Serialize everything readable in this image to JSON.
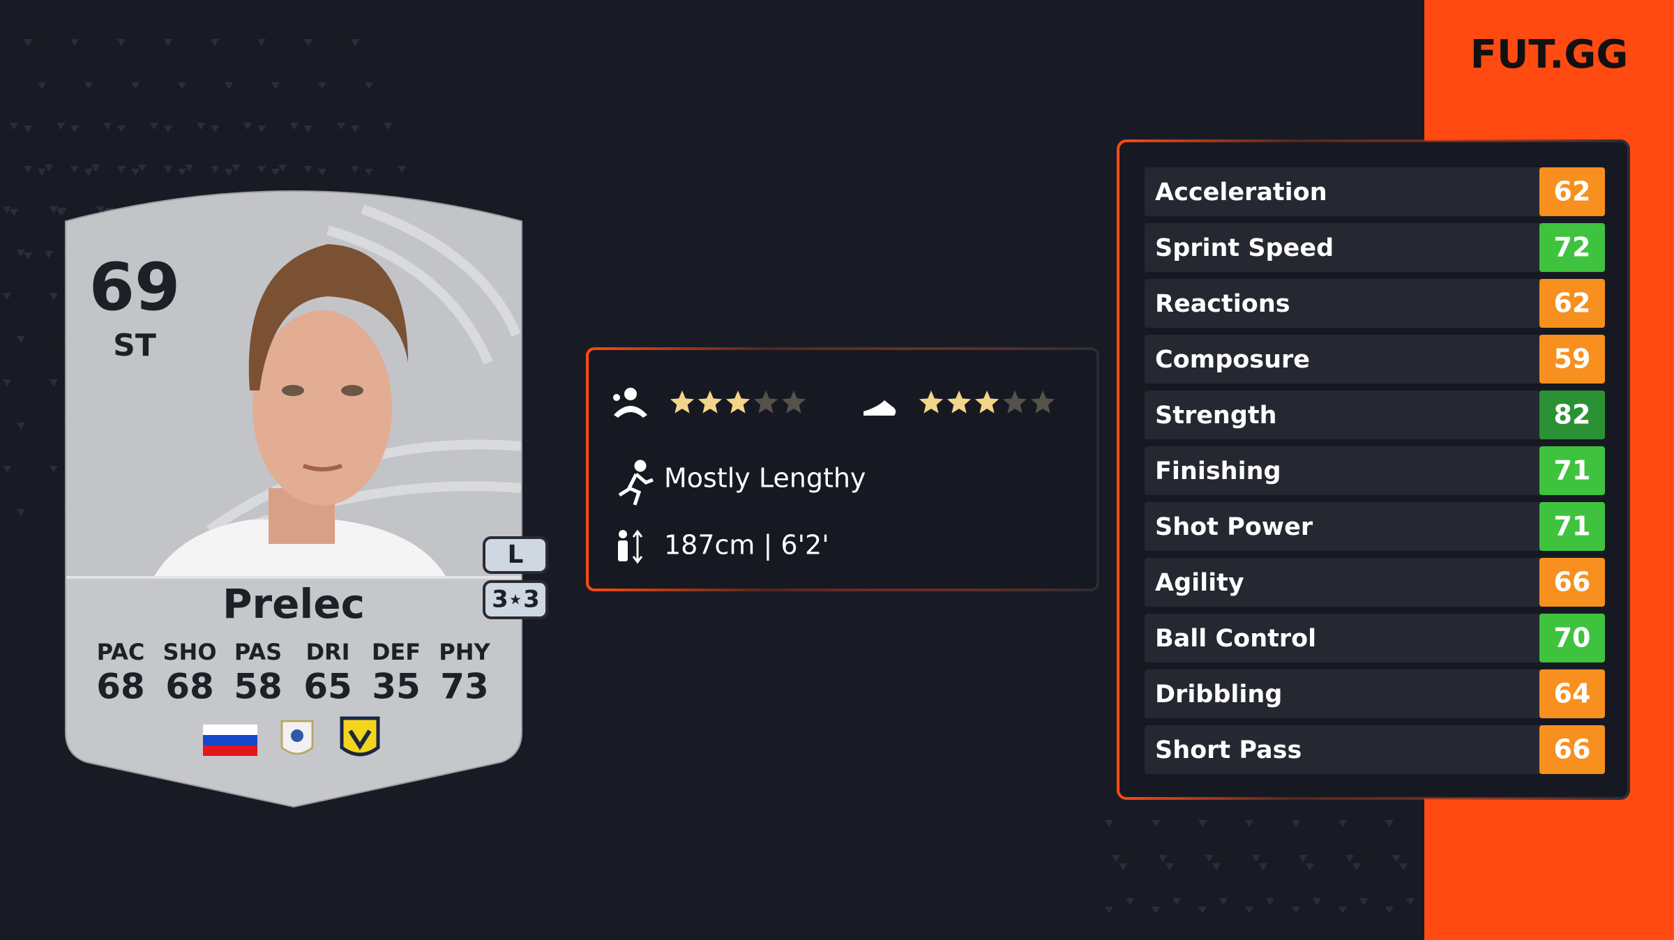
{
  "brand": "FUT.GG",
  "card": {
    "rating": 69,
    "position": "ST",
    "name": "Prelec",
    "foot": "L",
    "face_stats": [
      {
        "label": "PAC",
        "value": 68
      },
      {
        "label": "SHO",
        "value": 68
      },
      {
        "label": "PAS",
        "value": 58
      },
      {
        "label": "DRI",
        "value": 65
      },
      {
        "label": "DEF",
        "value": 35
      },
      {
        "label": "PHY",
        "value": 73
      }
    ]
  },
  "info": {
    "skill_moves": 3,
    "weak_foot": 3,
    "star_max": 5,
    "star_color": "#f2d58a",
    "star_empty_color": "#55524a",
    "accelerate": "Mostly Lengthy",
    "height": "187cm | 6'2'"
  },
  "stats": [
    {
      "name": "Acceleration",
      "value": 62,
      "color": "#f7901e"
    },
    {
      "name": "Sprint Speed",
      "value": 72,
      "color": "#3fc33f"
    },
    {
      "name": "Reactions",
      "value": 62,
      "color": "#f7901e"
    },
    {
      "name": "Composure",
      "value": 59,
      "color": "#f7901e"
    },
    {
      "name": "Strength",
      "value": 82,
      "color": "#2a9234"
    },
    {
      "name": "Finishing",
      "value": 71,
      "color": "#3fc33f"
    },
    {
      "name": "Shot Power",
      "value": 71,
      "color": "#3fc33f"
    },
    {
      "name": "Agility",
      "value": 66,
      "color": "#f7901e"
    },
    {
      "name": "Ball Control",
      "value": 70,
      "color": "#3fc33f"
    },
    {
      "name": "Dribbling",
      "value": 64,
      "color": "#f7901e"
    },
    {
      "name": "Short Pass",
      "value": 66,
      "color": "#f7901e"
    }
  ]
}
